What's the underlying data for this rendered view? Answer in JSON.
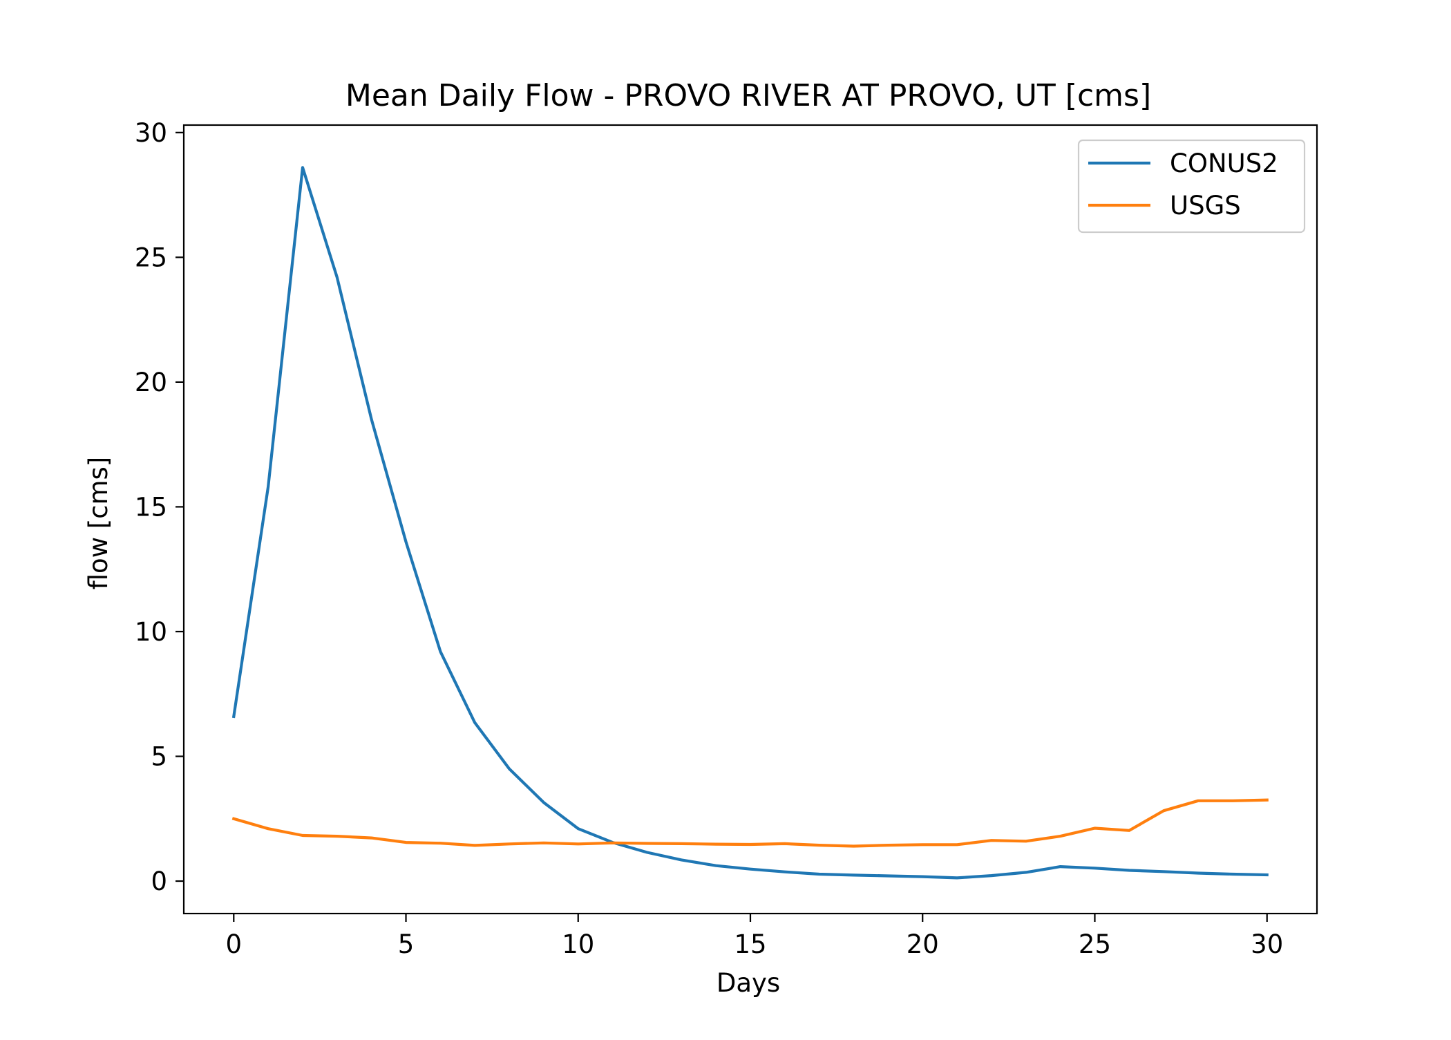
{
  "chart_data": {
    "type": "line",
    "title": "Mean Daily Flow - PROVO RIVER AT PROVO, UT [cms]",
    "xlabel": "Days",
    "ylabel": "flow [cms]",
    "xlim": [
      -1.45,
      31.45
    ],
    "ylim": [
      -1.3,
      30.3
    ],
    "xticks": [
      0,
      5,
      10,
      15,
      20,
      25,
      30
    ],
    "yticks": [
      0,
      5,
      10,
      15,
      20,
      25,
      30
    ],
    "xtick_labels": [
      "0",
      "5",
      "10",
      "15",
      "20",
      "25",
      "30"
    ],
    "ytick_labels": [
      "0",
      "5",
      "10",
      "15",
      "20",
      "25",
      "30"
    ],
    "grid": false,
    "legend_position": "top-right",
    "x": [
      0,
      1,
      2,
      3,
      4,
      5,
      6,
      7,
      8,
      9,
      10,
      11,
      12,
      13,
      14,
      15,
      16,
      17,
      18,
      19,
      20,
      21,
      22,
      23,
      24,
      25,
      26,
      27,
      28,
      29,
      30
    ],
    "series": [
      {
        "name": "CONUS2",
        "color": "#1f77b4",
        "values": [
          6.6,
          15.8,
          28.6,
          24.2,
          18.5,
          13.6,
          9.2,
          6.35,
          4.5,
          3.15,
          2.1,
          1.55,
          1.15,
          0.85,
          0.62,
          0.48,
          0.37,
          0.28,
          0.24,
          0.21,
          0.18,
          0.13,
          0.22,
          0.35,
          0.58,
          0.52,
          0.43,
          0.38,
          0.32,
          0.28,
          0.25
        ]
      },
      {
        "name": "USGS",
        "color": "#ff7f0e",
        "values": [
          2.5,
          2.1,
          1.83,
          1.8,
          1.73,
          1.55,
          1.52,
          1.43,
          1.49,
          1.53,
          1.49,
          1.53,
          1.51,
          1.5,
          1.48,
          1.47,
          1.5,
          1.44,
          1.4,
          1.44,
          1.46,
          1.46,
          1.63,
          1.6,
          1.8,
          2.12,
          2.03,
          2.82,
          3.22,
          3.22,
          3.25
        ]
      }
    ]
  }
}
